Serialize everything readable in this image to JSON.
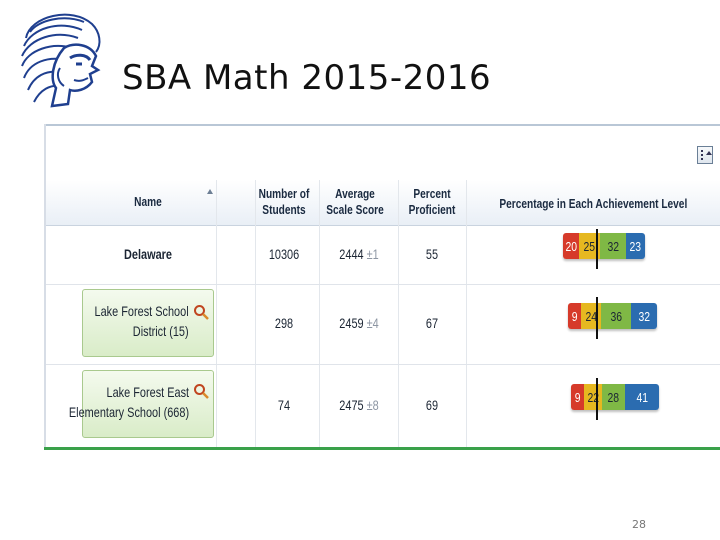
{
  "slide": {
    "title": "SBA Math 2015-2016",
    "page_number": "28",
    "logo_icon": "spartan-helmet-icon"
  },
  "table": {
    "headers": {
      "name": "Name",
      "students": [
        "Number of",
        "Students"
      ],
      "score": [
        "Average",
        "Scale Score"
      ],
      "proficient": [
        "Percent",
        "Proficient"
      ],
      "levels": "Percentage in Each Achievement Level"
    },
    "rows": [
      {
        "name_lines": [
          "Delaware"
        ],
        "students": "10306",
        "score": "2444",
        "error": "±1",
        "proficient": "55",
        "levels": [
          "20",
          "25",
          "32",
          "23"
        ],
        "linked": false
      },
      {
        "name_lines": [
          "Lake Forest School",
          "District (15)"
        ],
        "students": "298",
        "score": "2459",
        "error": "±4",
        "proficient": "67",
        "levels": [
          "9",
          "24",
          "36",
          "32"
        ],
        "linked": true
      },
      {
        "name_lines": [
          "Lake Forest East",
          "Elementary School (668)"
        ],
        "students": "74",
        "score": "2475",
        "error": "±8",
        "proficient": "69",
        "levels": [
          "9",
          "22",
          "28",
          "41"
        ],
        "linked": true
      }
    ]
  },
  "level_colors": [
    "#d63a2a",
    "#e6b820",
    "#7fb845",
    "#2b6cb0"
  ],
  "icons": {
    "search": "magnifier-icon",
    "sort": "sort-ascending-icon",
    "menu": "table-options-icon"
  }
}
